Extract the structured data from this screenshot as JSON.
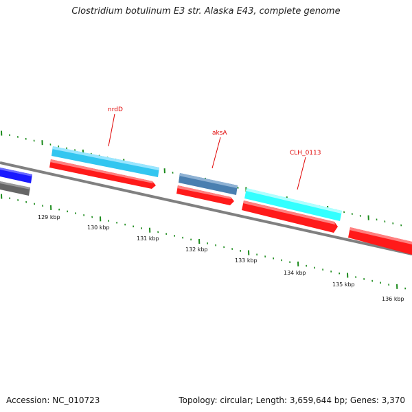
{
  "title": "Clostridium botulinum E3 str. Alaska E43, complete genome",
  "footer": {
    "accession": "Accession: NC_010723",
    "summary": "Topology: circular; Length: 3,659,644 bp; Genes: 3,370"
  },
  "ticks": [
    {
      "label": "129 kbp"
    },
    {
      "label": "130 kbp"
    },
    {
      "label": "131 kbp"
    },
    {
      "label": "132 kbp"
    },
    {
      "label": "133 kbp"
    },
    {
      "label": "134 kbp"
    },
    {
      "label": "135 kbp"
    },
    {
      "label": "136 kbp"
    }
  ],
  "gene_labels": [
    {
      "name": "nrdD"
    },
    {
      "name": "aksA"
    },
    {
      "name": "CLH_0113"
    }
  ],
  "colors": {
    "backbone": "#808080",
    "tick": "#1a8a1a",
    "gene_label": "#e00000",
    "cds_forward": "#ff1a1a",
    "light_blue": "#33c6f0",
    "steel_blue": "#4a7fb0",
    "cyan": "#33ffff",
    "blue": "#1a1aff",
    "gray": "#666666"
  }
}
